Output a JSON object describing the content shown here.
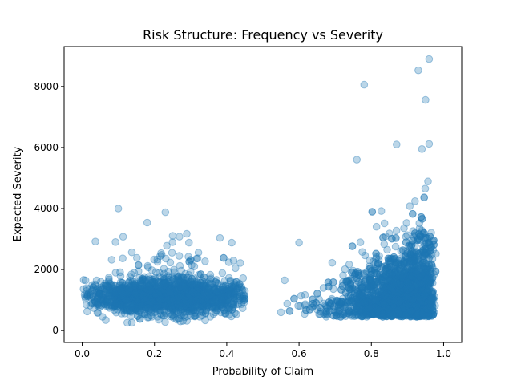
{
  "chart_data": {
    "type": "scatter",
    "title": "Risk Structure: Frequency vs Severity",
    "xlabel": "Probability of Claim",
    "ylabel": "Expected Severity",
    "xlim": [
      -0.05,
      1.05
    ],
    "ylim": [
      -390,
      9310
    ],
    "xticks": [
      0.0,
      0.2,
      0.4,
      0.6,
      0.8,
      1.0
    ],
    "xtick_labels": [
      "0.0",
      "0.2",
      "0.4",
      "0.6",
      "0.8",
      "1.0"
    ],
    "yticks": [
      0,
      2000,
      4000,
      6000,
      8000
    ],
    "ytick_labels": [
      "0",
      "2000",
      "4000",
      "6000",
      "8000"
    ],
    "grid": false,
    "marker_color": "#1f77b4",
    "marker_alpha": 0.3,
    "clusters": [
      {
        "x_range": [
          0.0,
          0.45
        ],
        "severity_center": 1000,
        "severity_spread": 300,
        "severity_max": 4000,
        "approx_count": 2000
      },
      {
        "x_range": [
          0.55,
          1.0
        ],
        "severity_center": 900,
        "severity_spread": 600,
        "severity_max": 8900,
        "approx_count": 2500
      }
    ],
    "highlighted_points": [
      {
        "x": 0.1,
        "y": 4000
      },
      {
        "x": 0.23,
        "y": 3880
      },
      {
        "x": 0.18,
        "y": 3540
      },
      {
        "x": 0.41,
        "y": 1600
      },
      {
        "x": 0.45,
        "y": 1300
      },
      {
        "x": 0.55,
        "y": 600
      },
      {
        "x": 0.56,
        "y": 1650
      },
      {
        "x": 0.6,
        "y": 2880
      },
      {
        "x": 0.76,
        "y": 5600
      },
      {
        "x": 0.78,
        "y": 8060
      },
      {
        "x": 0.87,
        "y": 6100
      },
      {
        "x": 0.93,
        "y": 8530
      },
      {
        "x": 0.95,
        "y": 7560
      },
      {
        "x": 0.96,
        "y": 8900
      },
      {
        "x": 0.96,
        "y": 6120
      },
      {
        "x": 0.94,
        "y": 5950
      }
    ]
  }
}
